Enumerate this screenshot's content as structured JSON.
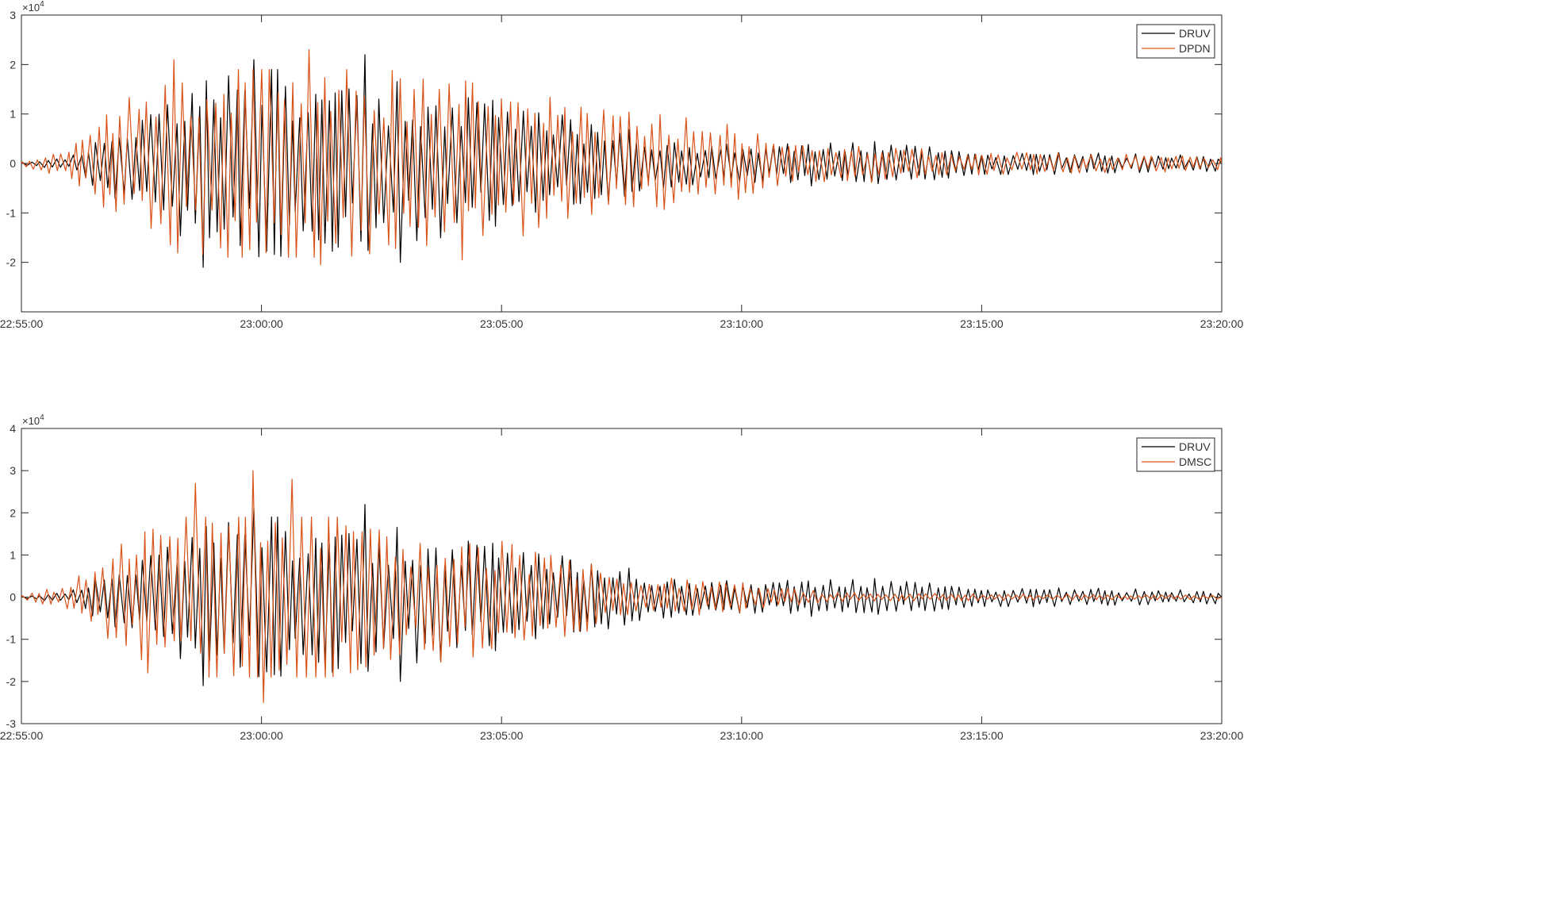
{
  "chart_data": [
    {
      "type": "line",
      "exponent_label": "×10",
      "exponent_power": "4",
      "ylim": [
        -3,
        3
      ],
      "y_ticks": [
        3,
        2,
        1,
        0,
        -1,
        -2
      ],
      "y_tick_labels": [
        "3",
        "2",
        "1",
        "0",
        "-1",
        "-2"
      ],
      "x_tick_labels": [
        "22:55:00",
        "23:00:00",
        "23:05:00",
        "23:10:00",
        "23:15:00",
        "23:20:00"
      ],
      "x_range_minutes": [
        0,
        25
      ],
      "legend_position": "top-right",
      "series": [
        {
          "name": "DRUV",
          "color": "#000000",
          "seed": 7,
          "envelope": [
            [
              0,
              0.04
            ],
            [
              1,
              0.12
            ],
            [
              1.5,
              0.5
            ],
            [
              2.5,
              1.0
            ],
            [
              4,
              1.8
            ],
            [
              5,
              1.9
            ],
            [
              7.5,
              1.7
            ],
            [
              10,
              1.2
            ],
            [
              12,
              0.8
            ],
            [
              13,
              0.6
            ],
            [
              14,
              0.45
            ],
            [
              15.5,
              0.35
            ],
            [
              17,
              0.5
            ],
            [
              18,
              0.4
            ],
            [
              20,
              0.25
            ],
            [
              25,
              0.15
            ]
          ],
          "period_minutes": 0.08,
          "peaks": [
            {
              "x": 7.2,
              "y": 2.2
            },
            {
              "x": 4.9,
              "y": 2.1
            },
            {
              "x": 3.8,
              "y": -2.1
            },
            {
              "x": 7.9,
              "y": -2.0
            }
          ]
        },
        {
          "name": "DPDN",
          "color": "#d95319",
          "seed": 13,
          "envelope": [
            [
              0,
              0.05
            ],
            [
              1,
              0.3
            ],
            [
              1.3,
              0.5
            ],
            [
              2,
              1.2
            ],
            [
              3,
              1.6
            ],
            [
              4,
              2.1
            ],
            [
              6,
              2.1
            ],
            [
              8,
              1.8
            ],
            [
              10,
              1.5
            ],
            [
              12,
              1.1
            ],
            [
              14,
              0.9
            ],
            [
              15,
              0.7
            ],
            [
              16,
              0.35
            ],
            [
              18,
              0.4
            ],
            [
              19,
              0.25
            ],
            [
              25,
              0.15
            ]
          ],
          "period_minutes": 0.085,
          "peaks": [
            {
              "x": 6.0,
              "y": 2.3
            },
            {
              "x": 3.1,
              "y": 2.1
            },
            {
              "x": 6.3,
              "y": -2.05
            },
            {
              "x": 9.1,
              "y": -1.95
            }
          ]
        }
      ]
    },
    {
      "type": "line",
      "exponent_label": "×10",
      "exponent_power": "4",
      "ylim": [
        -3,
        4
      ],
      "y_ticks": [
        4,
        3,
        2,
        1,
        0,
        -1,
        -2,
        -3
      ],
      "y_tick_labels": [
        "4",
        "3",
        "2",
        "1",
        "0",
        "-1",
        "-2",
        "-3"
      ],
      "x_tick_labels": [
        "22:55:00",
        "23:00:00",
        "23:05:00",
        "23:10:00",
        "23:15:00",
        "23:20:00"
      ],
      "x_range_minutes": [
        0,
        25
      ],
      "legend_position": "top-right",
      "series": [
        {
          "name": "DRUV",
          "color": "#000000",
          "seed": 7,
          "envelope": [
            [
              0,
              0.04
            ],
            [
              1,
              0.12
            ],
            [
              1.5,
              0.5
            ],
            [
              2.5,
              1.0
            ],
            [
              4,
              1.8
            ],
            [
              5,
              1.9
            ],
            [
              7.5,
              1.7
            ],
            [
              10,
              1.2
            ],
            [
              12,
              0.8
            ],
            [
              13,
              0.6
            ],
            [
              14,
              0.45
            ],
            [
              15.5,
              0.35
            ],
            [
              17,
              0.5
            ],
            [
              18,
              0.4
            ],
            [
              20,
              0.25
            ],
            [
              25,
              0.15
            ]
          ],
          "period_minutes": 0.08,
          "peaks": [
            {
              "x": 7.2,
              "y": 2.2
            },
            {
              "x": 4.9,
              "y": 2.1
            },
            {
              "x": 3.8,
              "y": -2.1
            },
            {
              "x": 7.9,
              "y": -2.0
            }
          ]
        },
        {
          "name": "DMSC",
          "color": "#d95319",
          "seed": 29,
          "envelope": [
            [
              0,
              0.05
            ],
            [
              1,
              0.3
            ],
            [
              1.5,
              0.8
            ],
            [
              2,
              1.2
            ],
            [
              3,
              1.8
            ],
            [
              4,
              2.4
            ],
            [
              5,
              2.6
            ],
            [
              6,
              2.4
            ],
            [
              8,
              1.6
            ],
            [
              10,
              1.3
            ],
            [
              11,
              1.0
            ],
            [
              13,
              0.5
            ],
            [
              15,
              0.35
            ],
            [
              16,
              0.2
            ],
            [
              17,
              0.1
            ],
            [
              25,
              0.05
            ]
          ],
          "period_minutes": 0.085,
          "peaks": [
            {
              "x": 4.8,
              "y": 3.0
            },
            {
              "x": 5.7,
              "y": 2.8
            },
            {
              "x": 3.7,
              "y": 2.7
            },
            {
              "x": 5.0,
              "y": -2.5
            },
            {
              "x": 2.6,
              "y": -1.8
            }
          ]
        }
      ]
    }
  ]
}
